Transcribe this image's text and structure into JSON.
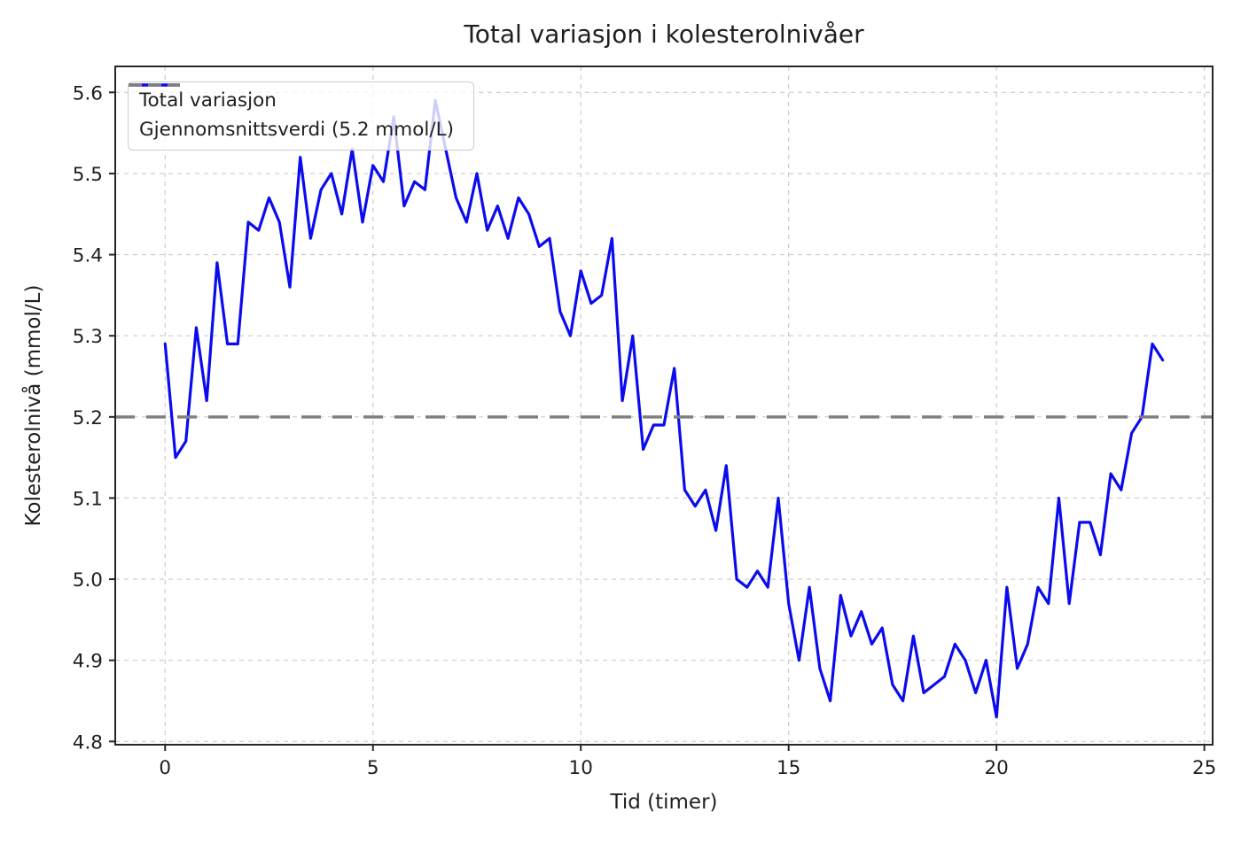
{
  "figure": {
    "title": "Total variasjon i kolesterolnivåer",
    "background_color": "#ffffff",
    "text_color": "#1f1f1f"
  },
  "legend": {
    "position": "upper left",
    "entries": [
      {
        "label": "Total variasjon",
        "color": "#0b0bee",
        "line_style": "solid"
      },
      {
        "label": "Gjennomsnittsverdi (5.2 mmol/L)",
        "color": "#808080",
        "line_style": "dashed"
      }
    ]
  },
  "chart_data": {
    "type": "line",
    "title": "Total variasjon i kolesterolnivåer",
    "xlabel": "Tid (timer)",
    "ylabel": "Kolesterolnivå (mmol/L)",
    "xlim": [
      -1.2,
      25.2
    ],
    "ylim": [
      4.796,
      5.632
    ],
    "xticks": [
      0,
      5,
      10,
      15,
      20,
      25
    ],
    "yticks": [
      4.8,
      4.9,
      5.0,
      5.1,
      5.2,
      5.3,
      5.4,
      5.5,
      5.6
    ],
    "grid": true,
    "grid_color": "#cbcbcb",
    "legend_position": "upper left",
    "x": [
      0,
      0.25,
      0.5,
      0.75,
      1,
      1.25,
      1.5,
      1.75,
      2,
      2.25,
      2.5,
      2.75,
      3,
      3.25,
      3.5,
      3.75,
      4,
      4.25,
      4.5,
      4.75,
      5,
      5.25,
      5.5,
      5.75,
      6,
      6.25,
      6.5,
      6.75,
      7,
      7.25,
      7.5,
      7.75,
      8,
      8.25,
      8.5,
      8.75,
      9,
      9.25,
      9.5,
      9.75,
      10,
      10.25,
      10.5,
      10.75,
      11,
      11.25,
      11.5,
      11.75,
      12,
      12.25,
      12.5,
      12.75,
      13,
      13.25,
      13.5,
      13.75,
      14,
      14.25,
      14.5,
      14.75,
      15,
      15.25,
      15.5,
      15.75,
      16,
      16.25,
      16.5,
      16.75,
      17,
      17.25,
      17.5,
      17.75,
      18,
      18.25,
      18.5,
      18.75,
      19,
      19.25,
      19.5,
      19.75,
      20,
      20.25,
      20.5,
      20.75,
      21,
      21.25,
      21.5,
      21.75,
      22,
      22.25,
      22.5,
      22.75,
      23,
      23.25,
      23.5,
      23.75,
      24
    ],
    "series": [
      {
        "name": "Total variasjon",
        "type": "line",
        "color": "#0b0bee",
        "line_width": 3.2,
        "values": [
          5.29,
          5.15,
          5.17,
          5.31,
          5.22,
          5.39,
          5.29,
          5.29,
          5.44,
          5.43,
          5.47,
          5.44,
          5.36,
          5.52,
          5.42,
          5.48,
          5.5,
          5.45,
          5.53,
          5.44,
          5.51,
          5.49,
          5.57,
          5.46,
          5.49,
          5.48,
          5.59,
          5.53,
          5.47,
          5.44,
          5.5,
          5.43,
          5.46,
          5.42,
          5.47,
          5.45,
          5.41,
          5.42,
          5.33,
          5.3,
          5.38,
          5.34,
          5.35,
          5.42,
          5.22,
          5.3,
          5.16,
          5.19,
          5.19,
          5.26,
          5.11,
          5.09,
          5.11,
          5.06,
          5.14,
          5.0,
          4.99,
          5.01,
          4.99,
          5.1,
          4.97,
          4.9,
          4.99,
          4.89,
          4.85,
          4.98,
          4.93,
          4.96,
          4.92,
          4.94,
          4.87,
          4.85,
          4.93,
          4.86,
          4.87,
          4.88,
          4.92,
          4.9,
          4.86,
          4.9,
          4.83,
          4.99,
          4.89,
          4.92,
          4.99,
          4.97,
          5.1,
          4.97,
          5.07,
          5.07,
          5.03,
          5.13,
          5.11,
          5.18,
          5.2,
          5.29,
          5.27
        ]
      },
      {
        "name": "Gjennomsnittsverdi (5.2 mmol/L)",
        "type": "hline",
        "color": "#808080",
        "line_width": 3.5,
        "dash": [
          22,
          13
        ],
        "value": 5.2
      }
    ]
  }
}
